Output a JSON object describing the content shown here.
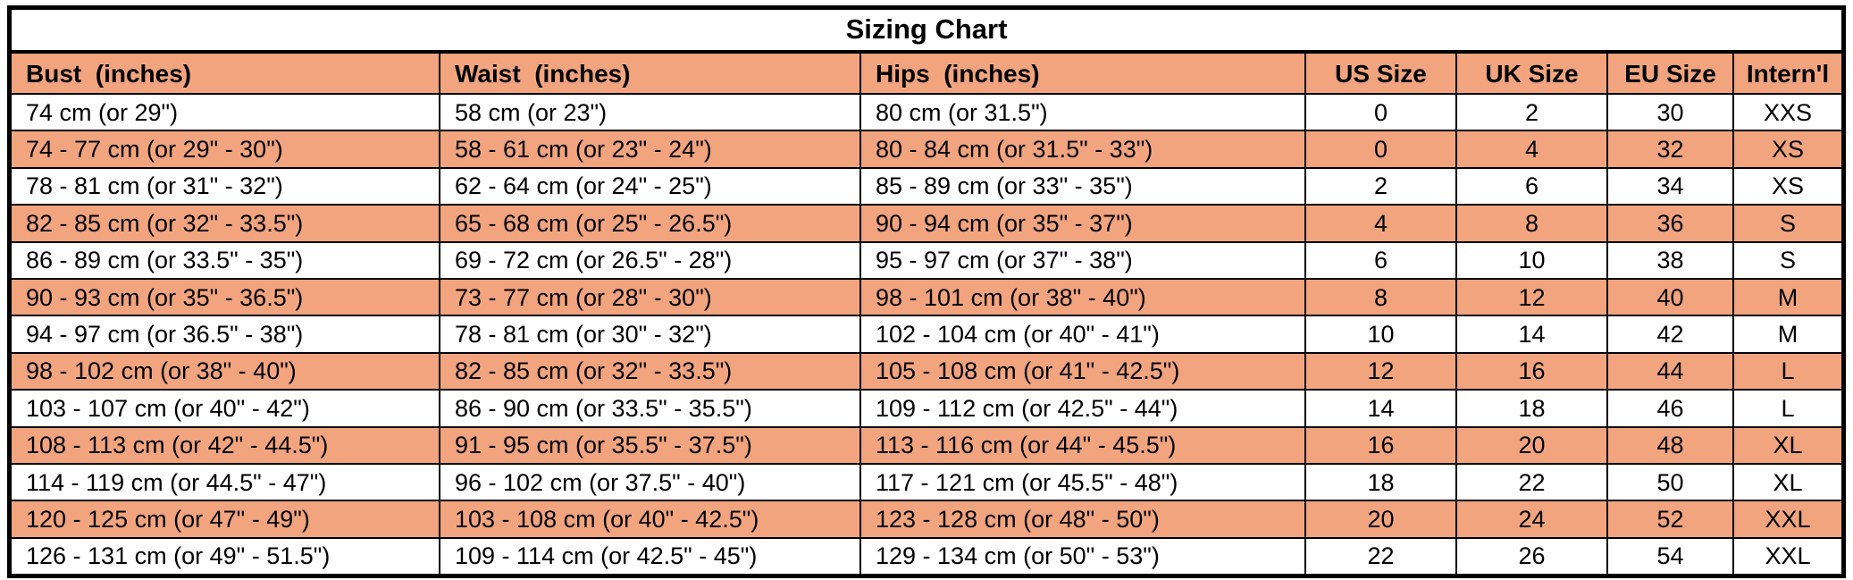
{
  "title": "Sizing Chart",
  "colors": {
    "stripe_salmon": "#F2A47E",
    "row_white": "#FFFFFF",
    "border_black": "#000000"
  },
  "table": {
    "columns": [
      {
        "key": "bust",
        "label": "Bust  (inches)",
        "align": "left"
      },
      {
        "key": "waist",
        "label": "Waist  (inches)",
        "align": "left"
      },
      {
        "key": "hips",
        "label": "Hips  (inches)",
        "align": "left"
      },
      {
        "key": "us-size",
        "label": "US Size",
        "align": "center"
      },
      {
        "key": "uk-size",
        "label": "UK Size",
        "align": "center"
      },
      {
        "key": "eu-size",
        "label": "EU Size",
        "align": "center"
      },
      {
        "key": "intl",
        "label": "Intern'l",
        "align": "center"
      }
    ],
    "rows": [
      [
        "74 cm (or 29\")",
        "58 cm (or 23\")",
        "80 cm (or 31.5\")",
        "0",
        "2",
        "30",
        "XXS"
      ],
      [
        "74 - 77 cm (or 29\" - 30\")",
        "58 - 61 cm (or 23\" - 24\")",
        "80 - 84 cm (or 31.5\" - 33\")",
        "0",
        "4",
        "32",
        "XS"
      ],
      [
        "78 - 81 cm (or 31\" - 32\")",
        "62 - 64 cm (or 24\" - 25\")",
        "85 - 89 cm (or 33\" - 35\")",
        "2",
        "6",
        "34",
        "XS"
      ],
      [
        "82 - 85 cm (or 32\" - 33.5\")",
        "65 - 68 cm (or 25\" - 26.5\")",
        "90 - 94 cm (or 35\" - 37\")",
        "4",
        "8",
        "36",
        "S"
      ],
      [
        "86 - 89 cm (or 33.5\" - 35\")",
        "69 - 72 cm (or 26.5\" - 28\")",
        "95 - 97 cm (or 37\" - 38\")",
        "6",
        "10",
        "38",
        "S"
      ],
      [
        "90 - 93 cm (or 35\" - 36.5\")",
        "73 - 77 cm (or 28\" - 30\")",
        "98 - 101 cm (or 38\" - 40\")",
        "8",
        "12",
        "40",
        "M"
      ],
      [
        "94 - 97 cm (or 36.5\" - 38\")",
        "78 - 81 cm (or 30\" - 32\")",
        "102 - 104 cm (or 40\" - 41\")",
        "10",
        "14",
        "42",
        "M"
      ],
      [
        "98 - 102 cm (or 38\" - 40\")",
        "82 - 85 cm (or 32\" - 33.5\")",
        "105 - 108 cm (or 41\" - 42.5\")",
        "12",
        "16",
        "44",
        "L"
      ],
      [
        "103 - 107 cm (or 40\" - 42\")",
        "86 - 90 cm (or 33.5\" - 35.5\")",
        "109 - 112 cm (or 42.5\" - 44\")",
        "14",
        "18",
        "46",
        "L"
      ],
      [
        "108 - 113 cm (or 42\" - 44.5\")",
        "91 - 95 cm (or 35.5\" - 37.5\")",
        "113 - 116 cm (or 44\" - 45.5\")",
        "16",
        "20",
        "48",
        "XL"
      ],
      [
        "114 - 119 cm (or 44.5\" - 47\")",
        "96 - 102 cm (or 37.5\" - 40\")",
        "117 - 121 cm (or 45.5\" - 48\")",
        "18",
        "22",
        "50",
        "XL"
      ],
      [
        "120 - 125 cm (or 47\" - 49\")",
        "103 - 108 cm (or 40\" - 42.5\")",
        "123 - 128 cm (or 48\" - 50\")",
        "20",
        "24",
        "52",
        "XXL"
      ],
      [
        "126 - 131 cm (or 49\" - 51.5\")",
        "109 - 114 cm (or 42.5\" - 45\")",
        "129 - 134 cm (or 50\" - 53\")",
        "22",
        "26",
        "54",
        "XXL"
      ]
    ],
    "alt_row_indices": [
      1,
      3,
      5,
      7,
      9,
      11
    ]
  }
}
